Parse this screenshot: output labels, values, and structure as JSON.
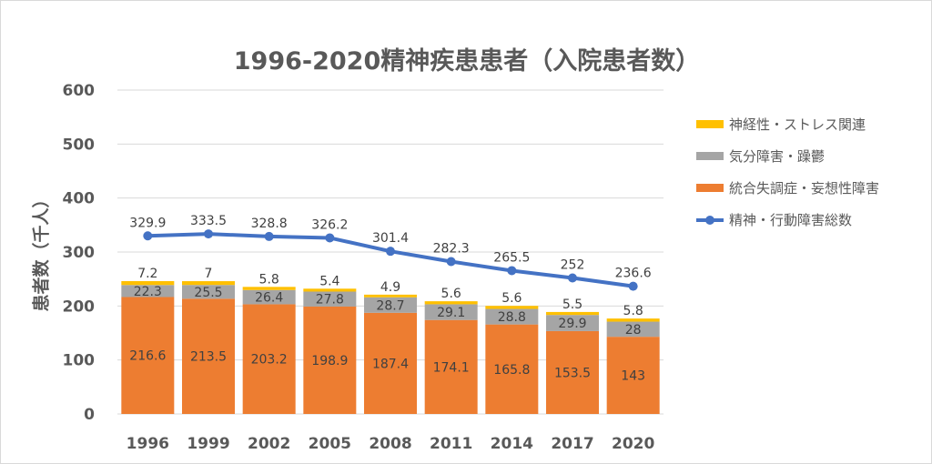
{
  "chart_data": {
    "type": "bar",
    "title": "1996-2020精神疾患患者（入院患者数）",
    "ylabel": "患者数（千人）",
    "xlabel": "",
    "ylim": [
      0,
      600
    ],
    "yticks": [
      0,
      100,
      200,
      300,
      400,
      500,
      600
    ],
    "grid": true,
    "legend_position": "right",
    "categories": [
      "1996",
      "1999",
      "2002",
      "2005",
      "2008",
      "2011",
      "2014",
      "2017",
      "2020"
    ],
    "stacked": true,
    "series": [
      {
        "name": "統合失調症・妄想性障害",
        "type": "bar",
        "color": "#ED7D31",
        "values": [
          216.6,
          213.5,
          203.2,
          198.9,
          187.4,
          174.1,
          165.8,
          153.5,
          143
        ]
      },
      {
        "name": "気分障害・躁鬱",
        "type": "bar",
        "color": "#A5A5A5",
        "values": [
          22.3,
          25.5,
          26.4,
          27.8,
          28.7,
          29.1,
          28.8,
          29.9,
          28
        ]
      },
      {
        "name": "神経性・ストレス関連",
        "type": "bar",
        "color": "#FFC000",
        "values": [
          7.2,
          7,
          5.8,
          5.4,
          4.9,
          5.6,
          5.6,
          5.5,
          5.8
        ]
      },
      {
        "name": "精神・行動障害総数",
        "type": "line",
        "color": "#4472C4",
        "values": [
          329.9,
          333.5,
          328.8,
          326.2,
          301.4,
          282.3,
          265.5,
          252,
          236.6
        ]
      }
    ],
    "legend_order": [
      2,
      1,
      0,
      3
    ]
  }
}
